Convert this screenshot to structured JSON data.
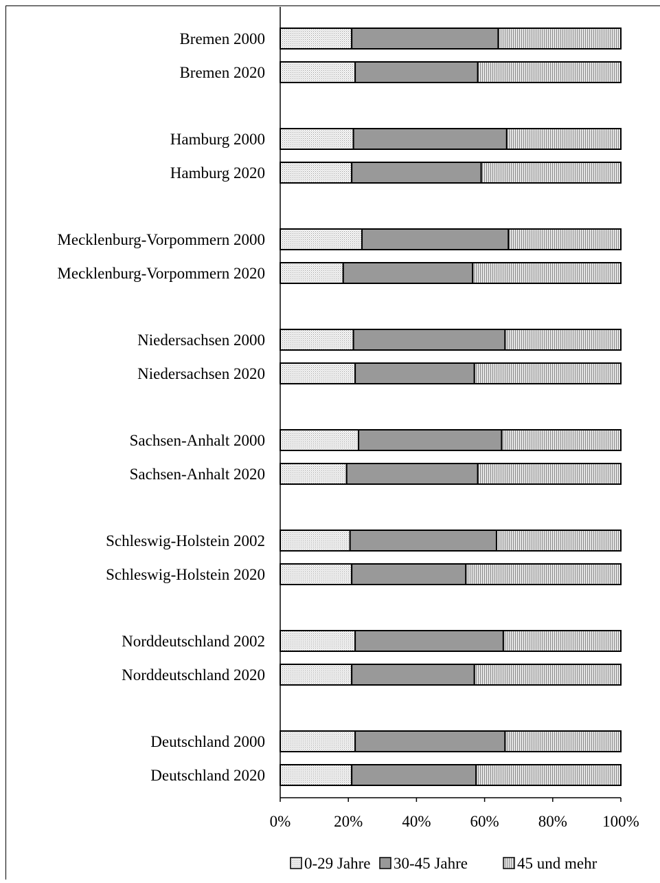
{
  "chart_data": {
    "type": "bar",
    "orientation": "horizontal",
    "stacked": "percent",
    "title": "",
    "xlabel": "",
    "ylabel": "",
    "xlim": [
      0,
      100
    ],
    "x_ticks": [
      "0%",
      "20%",
      "40%",
      "60%",
      "80%",
      "100%"
    ],
    "grid": false,
    "legend_position": "bottom",
    "categories": [
      "Bremen 2000",
      "Bremen 2020",
      "Hamburg 2000",
      "Hamburg 2020",
      "Mecklenburg-Vorpommern 2000",
      "Mecklenburg-Vorpommern 2020",
      "Niedersachsen 2000",
      "Niedersachsen 2020",
      "Sachsen-Anhalt 2000",
      "Sachsen-Anhalt 2020",
      "Schleswig-Holstein 2002",
      "Schleswig-Holstein 2020",
      "Norddeutschland 2002",
      "Norddeutschland 2020",
      "Deutschland 2000",
      "Deutschland 2020"
    ],
    "series": [
      {
        "name": "0-29 Jahre",
        "color": "#f0f0f0",
        "pattern": "fine-dots",
        "values": [
          21,
          22,
          21.5,
          21,
          24,
          18.5,
          21.5,
          22,
          23,
          19.5,
          20.5,
          21,
          22,
          21,
          22,
          21
        ]
      },
      {
        "name": "30-45 Jahre",
        "color": "#999999",
        "pattern": "solid",
        "values": [
          43,
          36,
          45,
          38,
          43,
          38,
          44.5,
          35,
          42,
          38.5,
          43,
          33.5,
          43.5,
          36,
          44,
          36.5
        ]
      },
      {
        "name": "45 und mehr",
        "color": "#cccccc",
        "pattern": "vertical-lines",
        "values": [
          36,
          42,
          33.5,
          41,
          33,
          43.5,
          34,
          43,
          35,
          42,
          36.5,
          45.5,
          34.5,
          43,
          34,
          42.5
        ]
      }
    ]
  }
}
